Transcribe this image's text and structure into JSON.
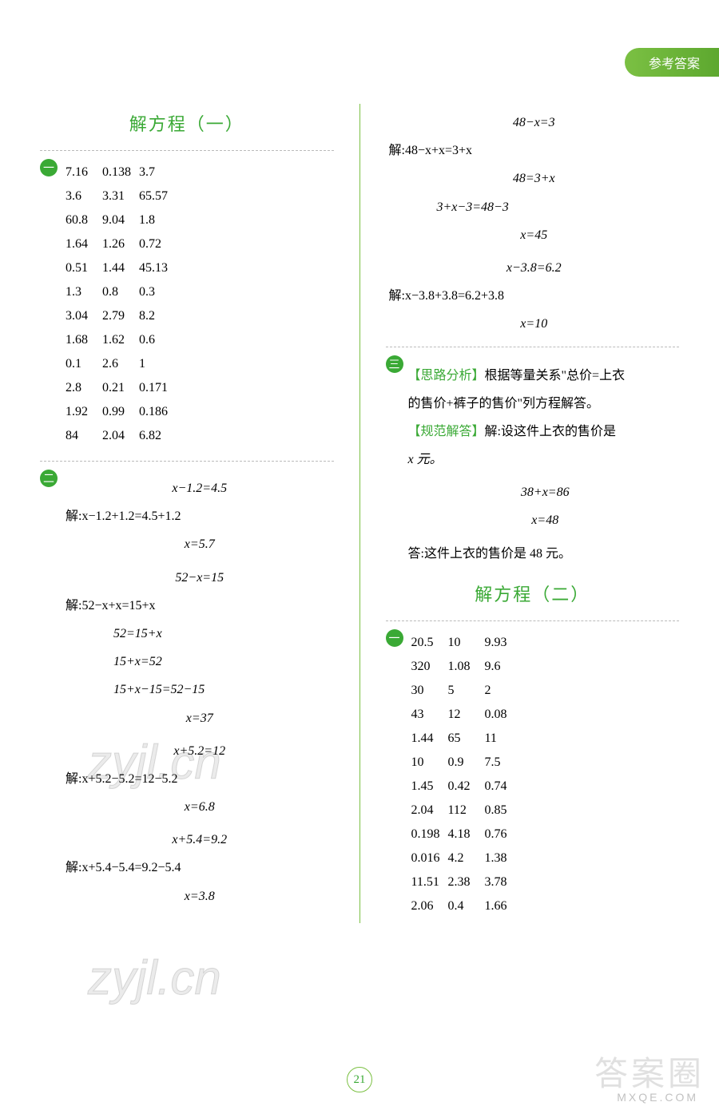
{
  "header_tab": "参考答案",
  "page_number": "21",
  "watermark_text": "zyjl.cn",
  "corner_watermark": "答案圈",
  "corner_url": "MXQE.COM",
  "left": {
    "title1": "解方程（一）",
    "badge1": "一",
    "table1": [
      "7.16",
      "0.138",
      "3.7",
      "3.6",
      "3.31",
      "65.57",
      "60.8",
      "9.04",
      "1.8",
      "1.64",
      "1.26",
      "0.72",
      "0.51",
      "1.44",
      "45.13",
      "1.3",
      "0.8",
      "0.3",
      "3.04",
      "2.79",
      "8.2",
      "1.68",
      "1.62",
      "0.6",
      "0.1",
      "2.6",
      "1",
      "2.8",
      "0.21",
      "0.171",
      "1.92",
      "0.99",
      "0.186",
      "84",
      "2.04",
      "6.82"
    ],
    "badge2": "二",
    "eq1_l1": "x−1.2=4.5",
    "eq1_l2": "解:x−1.2+1.2=4.5+1.2",
    "eq1_l3": "x=5.7",
    "eq2_l1": "52−x=15",
    "eq2_l2": "解:52−x+x=15+x",
    "eq2_l3": "52=15+x",
    "eq2_l4": "15+x=52",
    "eq2_l5": "15+x−15=52−15",
    "eq2_l6": "x=37",
    "eq3_l1": "x+5.2=12",
    "eq3_l2": "解:x+5.2−5.2=12−5.2",
    "eq3_l3": "x=6.8",
    "eq4_l1": "x+5.4=9.2",
    "eq4_l2": "解:x+5.4−5.4=9.2−5.4",
    "eq4_l3": "x=3.8"
  },
  "right": {
    "eq5_l1": "48−x=3",
    "eq5_l2": "解:48−x+x=3+x",
    "eq5_l3": "48=3+x",
    "eq5_l4": "3+x−3=48−3",
    "eq5_l5": "x=45",
    "eq6_l1": "x−3.8=6.2",
    "eq6_l2": "解:x−3.8+3.8=6.2+3.8",
    "eq6_l3": "x=10",
    "badge3": "三",
    "analysis_label": "【思路分析】",
    "analysis_text1": "根据等量关系\"总价=上衣",
    "analysis_text2": "的售价+裤子的售价\"列方程解答。",
    "model_label": "【规范解答】",
    "model_text1": "解:设这件上衣的售价是",
    "model_text2": "x 元。",
    "eq7_l1": "38+x=86",
    "eq7_l2": "x=48",
    "answer_text": "答:这件上衣的售价是 48 元。",
    "title2": "解方程（二）",
    "badge4": "一",
    "table2": [
      "20.5",
      "10",
      "9.93",
      "320",
      "1.08",
      "9.6",
      "30",
      "5",
      "2",
      "43",
      "12",
      "0.08",
      "1.44",
      "65",
      "11",
      "10",
      "0.9",
      "7.5",
      "1.45",
      "0.42",
      "0.74",
      "2.04",
      "112",
      "0.85",
      "0.198",
      "4.18",
      "0.76",
      "0.016",
      "4.2",
      "1.38",
      "11.51",
      "2.38",
      "3.78",
      "2.06",
      "0.4",
      "1.66"
    ]
  }
}
